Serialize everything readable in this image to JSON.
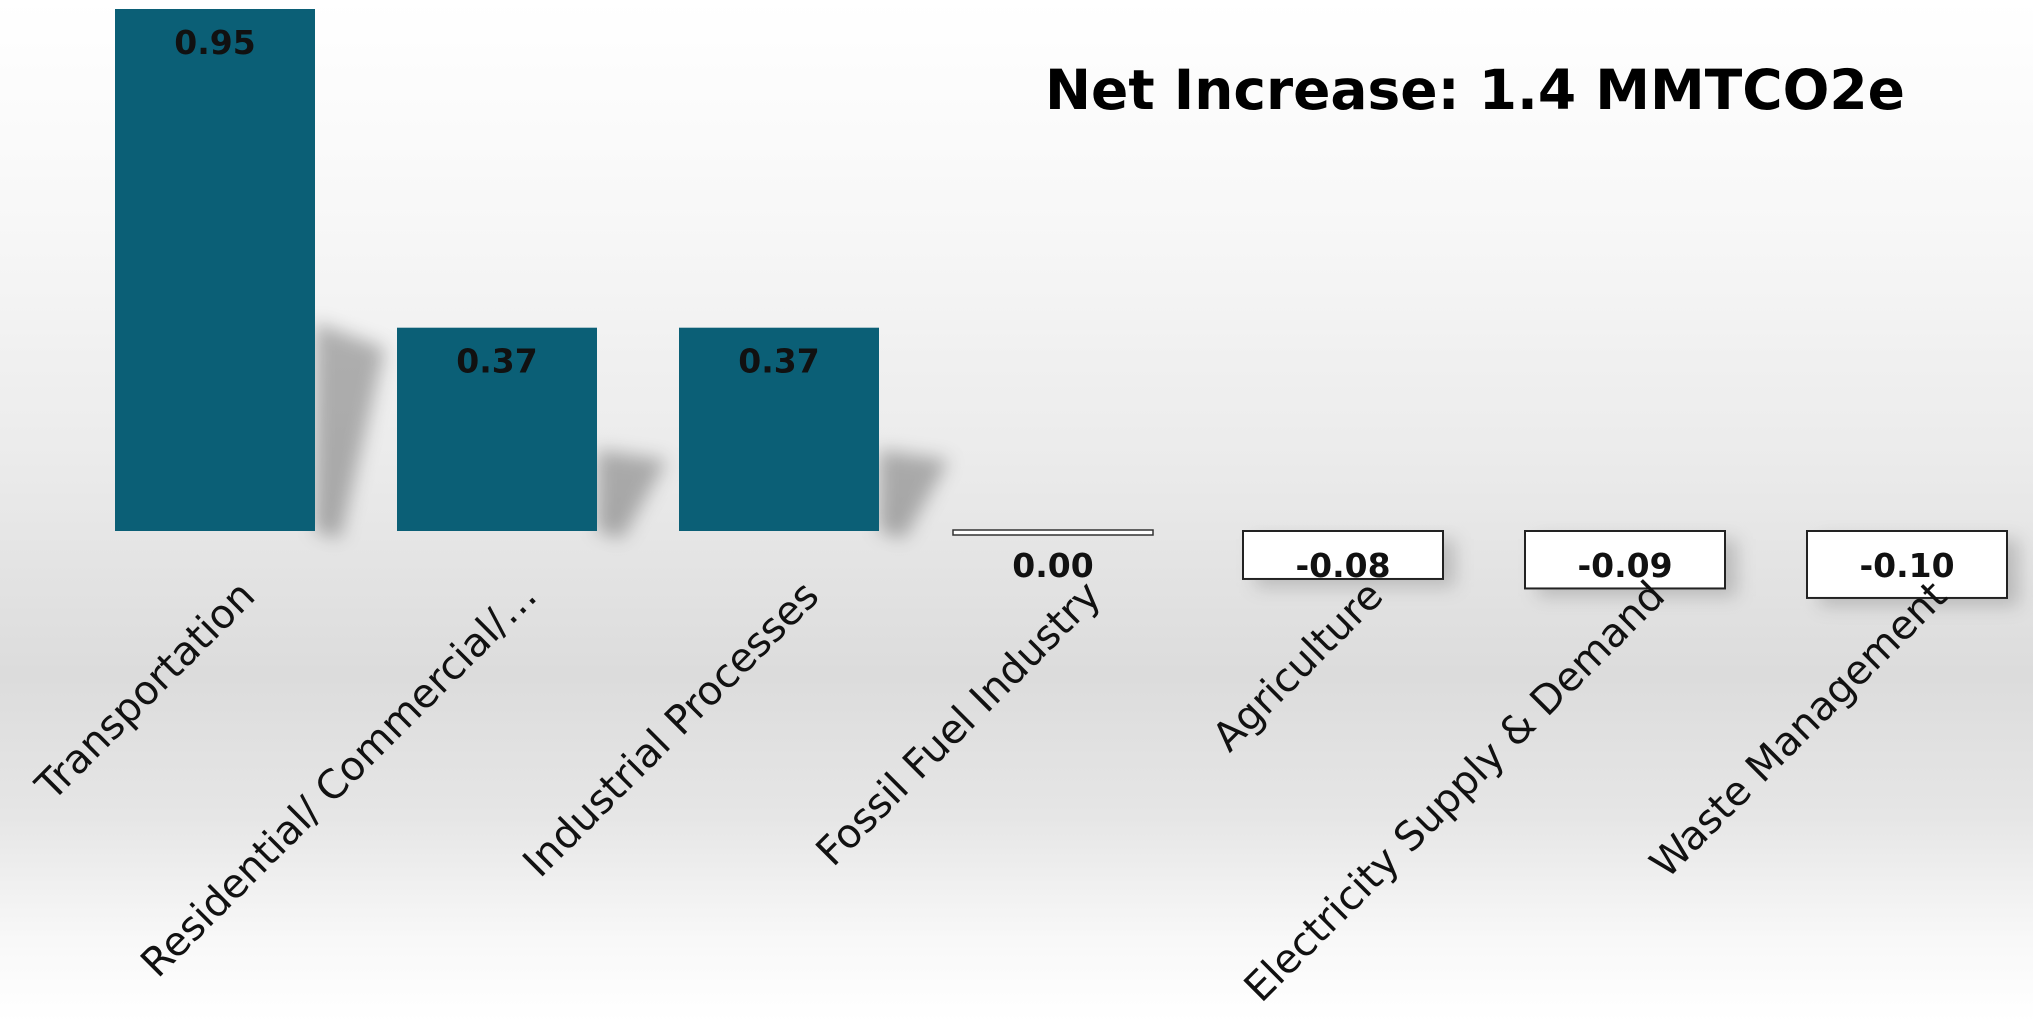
{
  "chart_data": {
    "type": "bar",
    "title": "",
    "annotation": "Net Increase: 1.4 MMTCO2e",
    "xlabel": "",
    "ylabel": "",
    "categories": [
      "Transportation",
      "Residential/ Commercial/…",
      "Industrial Processes",
      "Fossil Fuel Industry",
      "Agriculture",
      "Electricity Supply & Demand",
      "Waste Management"
    ],
    "values": [
      0.95,
      0.37,
      0.37,
      0.0,
      -0.08,
      -0.09,
      -0.1
    ],
    "value_labels": [
      "0.95",
      "0.37",
      "0.37",
      "0.00",
      "-0.08",
      "-0.09",
      "-0.10"
    ],
    "ylim": [
      -0.1,
      0.95
    ],
    "grid": false,
    "legend": "none",
    "colors": {
      "positive_fill": "#0b5f76",
      "negative_fill": "#ffffff",
      "negative_stroke": "#222222"
    }
  }
}
